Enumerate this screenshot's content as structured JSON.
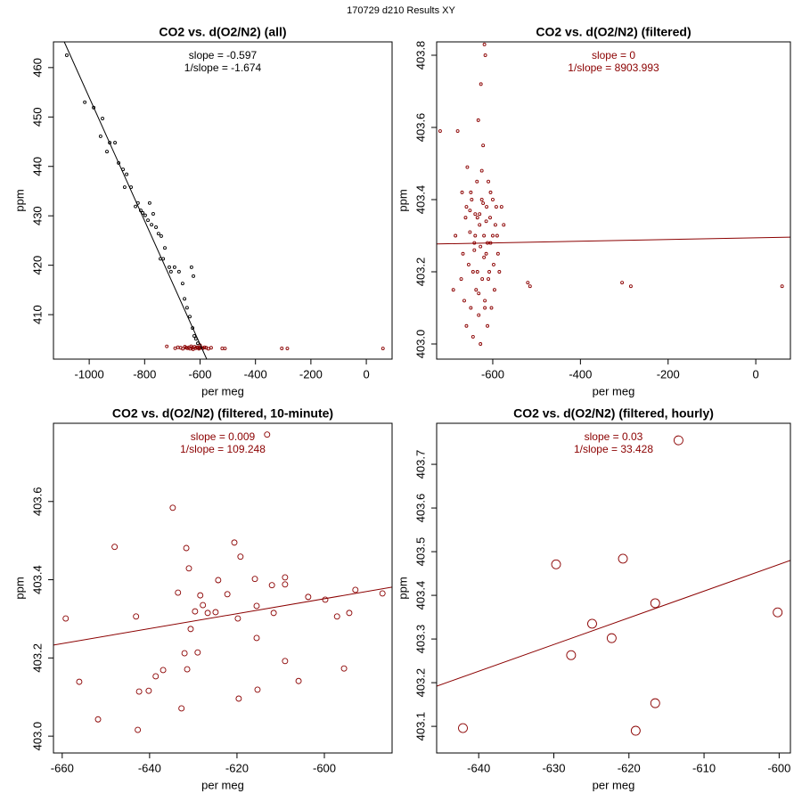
{
  "title": "170729   d210   Results XY",
  "chart_data": [
    {
      "type": "scatter",
      "title": "CO2 vs. d(O2/N2) (all)",
      "annotations": [
        "slope = -0.597",
        "1/slope = -1.674"
      ],
      "annotation_color": "#000000",
      "xlabel": "per meg",
      "ylabel": "ppm",
      "xlim": [
        -1129,
        93
      ],
      "ylim": [
        401,
        465.2
      ],
      "xticks": [
        -1000,
        -800,
        -600,
        -400,
        -200,
        0
      ],
      "yticks": [
        410,
        420,
        430,
        440,
        450,
        460
      ],
      "marker_size": 1.5,
      "series": [
        {
          "color": "#000000",
          "x": [
            -1081,
            -1016,
            -984,
            -959,
            -952,
            -936,
            -926,
            -907,
            -894,
            -878,
            -865,
            -872,
            -849,
            -833,
            -824,
            -814,
            -807,
            -798,
            -788,
            -775,
            -782,
            -769,
            -759,
            -750,
            -740,
            -743,
            -733,
            -727,
            -711,
            -705,
            -692,
            -676,
            -663,
            -656,
            -647,
            -637,
            -627,
            -621,
            -615,
            -608,
            -602,
            -631,
            -624
          ],
          "y": [
            462.5,
            453.0,
            451.9,
            446.1,
            449.7,
            443.0,
            444.8,
            444.8,
            440.7,
            439.4,
            438.4,
            435.8,
            435.8,
            431.9,
            432.6,
            431.1,
            430.6,
            430.1,
            429.1,
            428.2,
            432.6,
            430.4,
            427.7,
            426.4,
            425.9,
            421.3,
            421.3,
            423.5,
            419.6,
            418.7,
            419.6,
            418.7,
            416.3,
            413.2,
            411.4,
            409.6,
            407.3,
            405.7,
            405.1,
            404.2,
            403.3,
            419.6,
            417.8
          ]
        },
        {
          "color": "#8b0000",
          "x": [
            -720,
            -690,
            -680,
            -670,
            -662,
            -655,
            -650,
            -645,
            -640,
            -636,
            -632,
            -628,
            -625,
            -620,
            -616,
            -612,
            -608,
            -604,
            -600,
            -595,
            -590,
            -584,
            -578,
            -570,
            -560,
            -520,
            -510,
            -305,
            -285,
            60
          ],
          "y": [
            403.59,
            403.2,
            403.4,
            403.3,
            403.1,
            403.5,
            403.3,
            403.2,
            403.4,
            403.1,
            403.6,
            403.3,
            403.0,
            403.5,
            403.2,
            403.4,
            403.3,
            403.1,
            403.8,
            403.3,
            403.2,
            403.4,
            403.3,
            403.1,
            403.3,
            403.17,
            403.16,
            403.17,
            403.16,
            403.16
          ]
        }
      ],
      "fit": {
        "color": "#000000",
        "x": [
          -1090,
          -576
        ],
        "y": [
          465.2,
          401
        ]
      }
    },
    {
      "type": "scatter",
      "title": "CO2 vs. d(O2/N2) (filtered)",
      "annotations": [
        "slope = 0",
        "1/slope = 8903.993"
      ],
      "annotation_color": "#8b0000",
      "xlabel": "per meg",
      "ylabel": "ppm",
      "xlim": [
        -728,
        79
      ],
      "ylim": [
        402.958,
        403.837
      ],
      "xticks": [
        -600,
        -400,
        -200,
        0
      ],
      "yticks": [
        {
          "value": 403,
          "label": "403.0"
        },
        403.2,
        403.4,
        403.6,
        403.8
      ],
      "marker_size": 1.5,
      "series": [
        {
          "color": "#8b0000",
          "x": [
            -720,
            -680,
            -690,
            -685,
            -672,
            -670,
            -668,
            -665,
            -662,
            -660,
            -658,
            -655,
            -652,
            -650,
            -648,
            -645,
            -642,
            -640,
            -638,
            -636,
            -635,
            -633,
            -632,
            -630,
            -628,
            -627,
            -625,
            -624,
            -622,
            -620,
            -619,
            -618,
            -617,
            -615,
            -614,
            -612,
            -610,
            -608,
            -606,
            -605,
            -603,
            -600,
            -598,
            -596,
            -594,
            -592,
            -590,
            -588,
            -585,
            -580,
            -575,
            -660,
            -650,
            -640,
            -630,
            -625,
            -620,
            -615,
            -610,
            -605,
            -600,
            -645,
            -635,
            -628,
            -618,
            -612,
            -622,
            -632,
            -642,
            -652,
            -520,
            -515,
            -305,
            -285,
            60
          ],
          "y": [
            403.59,
            403.59,
            403.15,
            403.3,
            403.18,
            403.42,
            403.25,
            403.12,
            403.35,
            403.05,
            403.49,
            403.22,
            403.31,
            403.1,
            403.4,
            403.02,
            403.28,
            403.36,
            403.15,
            403.45,
            403.2,
            403.62,
            403.08,
            403.33,
            403.27,
            403.72,
            403.4,
            403.18,
            403.55,
            403.3,
            403.83,
            403.12,
            403.8,
            403.25,
            403.38,
            403.05,
            403.45,
            403.2,
            403.35,
            403.28,
            403.1,
            403.4,
            403.22,
            403.15,
            403.33,
            403.38,
            403.3,
            403.25,
            403.2,
            403.38,
            403.33,
            403.38,
            403.42,
            403.3,
            403.36,
            403.48,
            403.24,
            403.34,
            403.18,
            403.42,
            403.3,
            403.2,
            403.35,
            403.0,
            403.1,
            403.28,
            403.39,
            403.14,
            403.26,
            403.37,
            403.17,
            403.16,
            403.17,
            403.16,
            403.16
          ]
        }
      ],
      "fit": {
        "color": "#8b0000",
        "x": [
          -728,
          79
        ],
        "y": [
          403.277,
          403.296
        ]
      }
    },
    {
      "type": "scatter",
      "title": "CO2 vs. d(O2/N2) (filtered, 10-minute)",
      "annotations": [
        "slope = 0.009",
        "1/slope = 109.248"
      ],
      "annotation_color": "#8b0000",
      "xlabel": "per meg",
      "ylabel": "ppm",
      "xlim": [
        -662,
        -584.5
      ],
      "ylim": [
        402.957,
        403.8
      ],
      "xticks": [
        -660,
        -640,
        -620,
        -600
      ],
      "yticks": [
        {
          "value": 403,
          "label": "403.0"
        },
        403.2,
        403.4,
        403.6
      ],
      "marker_size": 3,
      "series": [
        {
          "color": "#8b0000",
          "x": [
            -659.2,
            -656.1,
            -651.8,
            -648.0,
            -643.1,
            -642.4,
            -640.2,
            -638.6,
            -636.9,
            -634.7,
            -633.5,
            -632.7,
            -632.0,
            -631.6,
            -631.4,
            -631.0,
            -630.6,
            -629.6,
            -629.0,
            -628.4,
            -627.8,
            -626.7,
            -624.9,
            -624.3,
            -622.2,
            -620.6,
            -619.6,
            -619.8,
            -619.2,
            -615.9,
            -615.5,
            -615.3,
            -615.5,
            -613.1,
            -612.0,
            -611.6,
            -609.0,
            -609.0,
            -609.0,
            -605.9,
            -603.7,
            -599.8,
            -597.1,
            -595.5,
            -594.3,
            -592.9,
            -586.7,
            -642.7
          ],
          "y": [
            403.301,
            403.139,
            403.043,
            403.484,
            403.306,
            403.114,
            403.116,
            403.153,
            403.169,
            403.584,
            403.367,
            403.071,
            403.212,
            403.481,
            403.171,
            403.429,
            403.274,
            403.319,
            403.214,
            403.36,
            403.335,
            403.315,
            403.317,
            403.399,
            403.363,
            403.495,
            403.096,
            403.301,
            403.459,
            403.402,
            403.251,
            403.119,
            403.333,
            403.771,
            403.386,
            403.315,
            403.406,
            403.388,
            403.192,
            403.141,
            403.356,
            403.349,
            403.306,
            403.173,
            403.315,
            403.374,
            403.365,
            403.016
          ]
        }
      ],
      "fit": {
        "color": "#8b0000",
        "x": [
          -662,
          -584.5
        ],
        "y": [
          403.233,
          403.381
        ]
      }
    },
    {
      "type": "scatter",
      "title": "CO2 vs. d(O2/N2) (filtered, hourly)",
      "annotations": [
        "slope = 0.03",
        "1/slope = 33.428"
      ],
      "annotation_color": "#8b0000",
      "xlabel": "per meg",
      "ylabel": "ppm",
      "xlim": [
        -645.6,
        -598.5
      ],
      "ylim": [
        403.039,
        403.794
      ],
      "xticks": [
        -640,
        -630,
        -620,
        -610,
        -600
      ],
      "yticks": [
        403.1,
        403.2,
        403.3,
        403.4,
        403.5,
        403.6,
        403.7
      ],
      "marker_size": 5,
      "series": [
        {
          "color": "#8b0000",
          "x": [
            -642.1,
            -629.7,
            -627.7,
            -624.9,
            -622.3,
            -620.8,
            -619.1,
            -616.5,
            -616.5,
            -613.4,
            -600.2
          ],
          "y": [
            403.096,
            403.471,
            403.263,
            403.335,
            403.302,
            403.484,
            403.09,
            403.382,
            403.153,
            403.755,
            403.361
          ]
        }
      ],
      "fit": {
        "color": "#8b0000",
        "x": [
          -645.6,
          -598.5
        ],
        "y": [
          403.192,
          403.48
        ]
      }
    }
  ]
}
